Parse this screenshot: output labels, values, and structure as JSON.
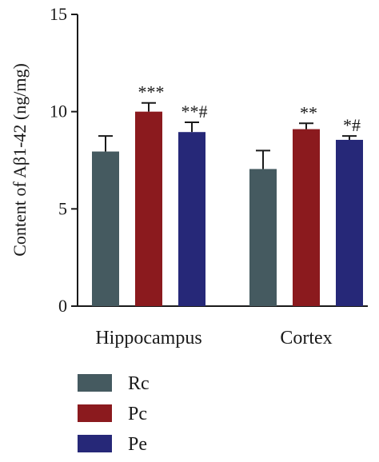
{
  "chart_data": {
    "type": "bar",
    "ylabel": "Content of Aβ1-42 (ng/mg)",
    "xlabel": "",
    "ylim": [
      0,
      15
    ],
    "yticks": [
      0,
      5,
      10,
      15
    ],
    "categories": [
      "Hippocampus",
      "Cortex"
    ],
    "legend_position": "bottom-left",
    "grid": false,
    "series": [
      {
        "name": "Rc",
        "color": "#455a60",
        "values": [
          7.95,
          7.05
        ],
        "errors": [
          0.8,
          0.95
        ],
        "annotations": [
          "",
          ""
        ]
      },
      {
        "name": "Pc",
        "color": "#8b1a1e",
        "values": [
          10.0,
          9.1
        ],
        "errors": [
          0.45,
          0.3
        ],
        "annotations": [
          "***",
          "**"
        ]
      },
      {
        "name": "Pe",
        "color": "#262878",
        "values": [
          8.95,
          8.55
        ],
        "errors": [
          0.5,
          0.2
        ],
        "annotations": [
          "**#",
          "*#"
        ]
      }
    ]
  }
}
